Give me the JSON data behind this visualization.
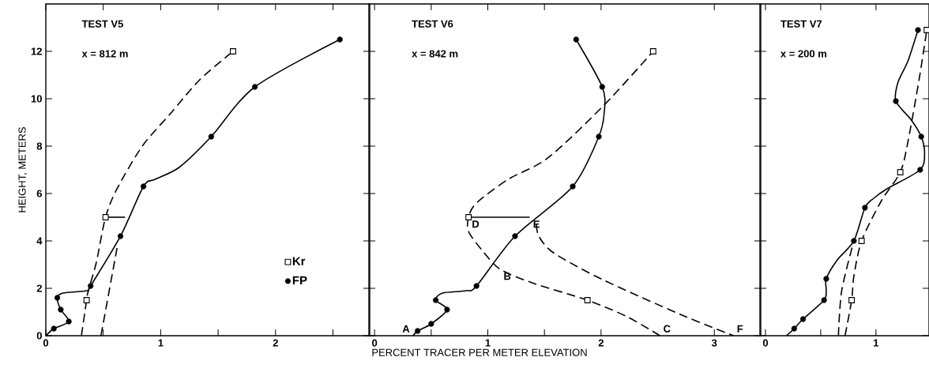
{
  "chart_data": [
    {
      "type": "line",
      "ylabel": "HEIGHT, METERS",
      "xlim": [
        0,
        2.82
      ],
      "ylim": [
        0,
        14
      ],
      "xticks": [
        0,
        {
          "value": 0.5,
          "label": null
        },
        1,
        {
          "value": 1.5,
          "label": null
        },
        2,
        {
          "value": 2.5,
          "label": null
        }
      ],
      "yticks": [
        0,
        2,
        4,
        6,
        8,
        10,
        12
      ],
      "legend": "bottom right",
      "grid": false,
      "annotations": [
        "TEST V5",
        "x = 812 m"
      ],
      "series": [
        {
          "line_style": "dashed",
          "color": "#000000",
          "x": [
            0.31,
            0.355,
            0.37,
            0.44,
            0.52,
            0.62,
            0.84,
            1.09,
            1.34,
            1.63
          ],
          "values": [
            0,
            1.5,
            1.9,
            3.1,
            5,
            6.2,
            8.0,
            9.4,
            10.8,
            12
          ]
        },
        {
          "line_style": "solid",
          "color": "#000000",
          "x": [
            0,
            0.07,
            0.2,
            0.13,
            0.1,
            0.15,
            0.36,
            0.39,
            0.65,
            0.85,
            0.95,
            1.16,
            1.44,
            1.82,
            2.56
          ],
          "values": [
            0,
            0.3,
            0.6,
            1.1,
            1.6,
            1.8,
            1.9,
            2.1,
            4.2,
            6.3,
            6.6,
            7.1,
            8.4,
            10.5,
            12.5
          ]
        },
        {
          "line_style": "solid",
          "color": "#000000",
          "x": [
            0.52,
            0.69
          ],
          "values": [
            5,
            5
          ]
        },
        {
          "line_style": "dashed",
          "color": "#000000",
          "x": [
            0.48,
            0.62
          ],
          "values": [
            0,
            3.7
          ]
        },
        {
          "type": "scatter",
          "name": "Kr",
          "marker": "square",
          "color": "#000000",
          "x": [
            0.355,
            0.52,
            1.63
          ],
          "values": [
            1.5,
            5,
            12
          ]
        },
        {
          "type": "scatter",
          "name": "FP",
          "marker": "circle",
          "color": "#000000",
          "x": [
            0.07,
            0.2,
            0.13,
            0.1,
            0.39,
            0.65,
            0.85,
            1.44,
            1.82,
            2.56
          ],
          "values": [
            0.3,
            0.6,
            1.1,
            1.6,
            2.1,
            4.2,
            6.3,
            8.4,
            10.5,
            12.5
          ]
        }
      ]
    },
    {
      "type": "line",
      "xlabel": "PERCENT TRACER PER METER ELEVATION",
      "xlim": [
        -0.05,
        3.41
      ],
      "ylim": [
        0,
        14
      ],
      "xticks": [
        0,
        {
          "value": 0.5,
          "label": null
        },
        1,
        {
          "value": 1.5,
          "label": null
        },
        2,
        3
      ],
      "yticks": [
        0,
        2,
        4,
        6,
        8,
        10,
        12
      ],
      "tick_labels": "x",
      "grid": false,
      "annotations": [
        "TEST V6",
        "x = 842 m",
        {
          "text": "A",
          "x": 0.34,
          "y": 0
        },
        {
          "text": "B",
          "x": 1.11,
          "y": 2.8
        },
        {
          "text": "C",
          "x": 2.52,
          "y": 0
        },
        {
          "text": "D",
          "x": 0.83,
          "y": 5
        },
        {
          "text": "E",
          "x": 1.37,
          "y": 5
        },
        {
          "text": "F",
          "x": 3.17,
          "y": 0
        }
      ],
      "series": [
        {
          "line_style": "dashed",
          "color": "#000000",
          "x": [
            2.52,
            2.23,
            1.88,
            1.41,
            1.11,
            0.95,
            0.83,
            0.83,
            0.9,
            1.18,
            1.53,
            2.02,
            2.46
          ],
          "values": [
            0,
            0.8,
            1.5,
            2.2,
            2.8,
            3.6,
            4.4,
            5,
            5.6,
            6.6,
            7.5,
            9.7,
            12
          ]
        },
        {
          "line_style": "solid",
          "color": "#000000",
          "x": [
            0.34,
            0.38,
            0.5,
            0.64,
            0.54,
            0.6,
            0.81,
            0.9,
            1.24,
            1.75,
            1.98,
            2.03,
            2.01,
            1.78
          ],
          "values": [
            0,
            0.2,
            0.5,
            1.1,
            1.5,
            1.8,
            1.9,
            2.1,
            4.2,
            6.3,
            8.4,
            9.5,
            10.5,
            12.5
          ]
        },
        {
          "line_style": "solid",
          "color": "#000000",
          "x": [
            0.85,
            1.37
          ],
          "values": [
            5,
            5
          ]
        },
        {
          "line_style": "dashed",
          "color": "#000000",
          "x": [
            1.43,
            1.45,
            1.58,
            2.0,
            2.7,
            3.17
          ],
          "values": [
            4.7,
            4.2,
            3.5,
            2.4,
            0.9,
            0
          ]
        },
        {
          "type": "scatter",
          "marker": "square",
          "color": "#000000",
          "x": [
            1.88,
            0.83,
            2.46
          ],
          "values": [
            1.5,
            5,
            12
          ]
        },
        {
          "type": "scatter",
          "marker": "circle",
          "color": "#000000",
          "x": [
            0.38,
            0.5,
            0.64,
            0.54,
            0.9,
            1.24,
            1.75,
            1.98,
            2.01,
            1.78
          ],
          "values": [
            0.2,
            0.5,
            1.1,
            1.5,
            2.1,
            4.2,
            6.3,
            8.4,
            10.5,
            12.5
          ]
        }
      ]
    },
    {
      "type": "line",
      "xlim": [
        -0.05,
        1.48
      ],
      "ylim": [
        0,
        14
      ],
      "xticks": [
        0,
        {
          "value": 0.5,
          "label": null
        },
        1
      ],
      "yticks": [
        0,
        2,
        4,
        6,
        8,
        10,
        12
      ],
      "tick_labels": "x",
      "grid": false,
      "annotations": [
        "TEST V7",
        "x = 200 m"
      ],
      "series": [
        {
          "line_style": "dashed",
          "color": "#000000",
          "x": [
            0.72,
            0.78,
            0.8,
            0.87,
            1.05,
            1.22,
            1.29,
            1.39,
            1.46
          ],
          "values": [
            0,
            1.5,
            2.5,
            4,
            5.7,
            6.9,
            8.2,
            10.8,
            12.9
          ]
        },
        {
          "line_style": "solid",
          "color": "#000000",
          "x": [
            0.19,
            0.26,
            0.34,
            0.53,
            0.55,
            0.55,
            0.65,
            0.8,
            0.9,
            0.98,
            1.1,
            1.4,
            1.44,
            1.41,
            1.32,
            1.18,
            1.2,
            1.29,
            1.38
          ],
          "values": [
            0,
            0.3,
            0.7,
            1.5,
            1.9,
            2.4,
            3.2,
            4.0,
            5.4,
            5.8,
            6.2,
            7.0,
            7.7,
            8.4,
            9.1,
            9.9,
            10.7,
            11.6,
            12.9
          ]
        },
        {
          "line_style": "dashed",
          "color": "#000000",
          "x": [
            0.66,
            0.69,
            0.8
          ],
          "values": [
            0,
            1.9,
            4.0
          ]
        },
        {
          "type": "scatter",
          "marker": "square",
          "color": "#000000",
          "x": [
            0.78,
            0.87,
            1.22,
            1.46
          ],
          "values": [
            1.5,
            4,
            6.9,
            12.9
          ]
        },
        {
          "type": "scatter",
          "marker": "circle",
          "color": "#000000",
          "x": [
            0.26,
            0.34,
            0.53,
            0.55,
            0.8,
            0.9,
            1.4,
            1.41,
            1.18,
            1.38
          ],
          "values": [
            0.3,
            0.7,
            1.5,
            2.4,
            4.0,
            5.4,
            7.0,
            8.4,
            9.9,
            12.9
          ]
        }
      ]
    }
  ]
}
